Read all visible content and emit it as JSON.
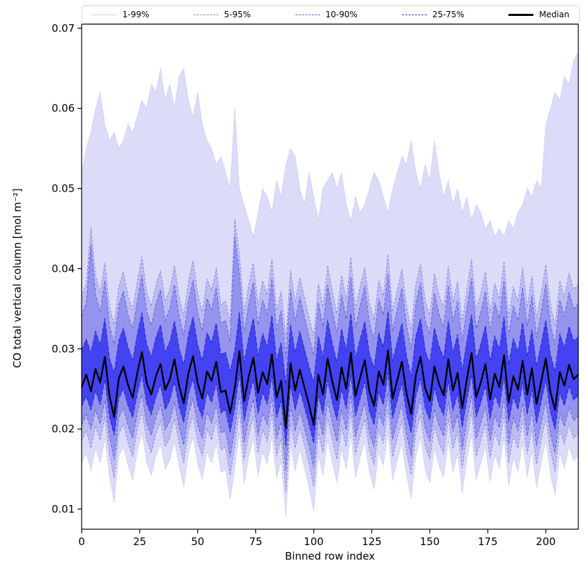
{
  "accent_color": "#2a2af0",
  "chart_data": {
    "type": "area",
    "title": "",
    "xlabel": "Binned row index",
    "ylabel": "CO total vertical column [mol m⁻²]",
    "xlim": [
      0,
      214
    ],
    "ylim": [
      0.0075,
      0.0705
    ],
    "xticks": [
      0,
      25,
      50,
      75,
      100,
      125,
      150,
      175,
      200
    ],
    "yticks": [
      0.01,
      0.02,
      0.03,
      0.04,
      0.05,
      0.06,
      0.07
    ],
    "x_step": 2,
    "value_scale": 0.0001,
    "grid": false,
    "legend_position": "top",
    "bands": [
      {
        "name": "1-99%",
        "fill": "#dcdcf8",
        "edge": "#a0a0e8",
        "dash": "1 2.5",
        "upper": [
          520,
          550,
          570,
          600,
          620,
          580,
          560,
          570,
          550,
          560,
          580,
          570,
          590,
          610,
          600,
          630,
          620,
          650,
          610,
          630,
          600,
          640,
          650,
          610,
          590,
          620,
          580,
          560,
          550,
          530,
          540,
          520,
          500,
          600,
          500,
          480,
          460,
          440,
          470,
          500,
          490,
          470,
          510,
          490,
          530,
          550,
          540,
          500,
          480,
          520,
          490,
          460,
          500,
          510,
          520,
          500,
          520,
          480,
          460,
          490,
          470,
          480,
          500,
          520,
          510,
          490,
          470,
          500,
          520,
          540,
          530,
          560,
          520,
          500,
          530,
          510,
          560,
          520,
          490,
          510,
          480,
          500,
          470,
          490,
          460,
          480,
          470,
          450,
          460,
          440,
          450,
          440,
          460,
          450,
          470,
          480,
          500,
          490,
          510,
          500,
          580,
          600,
          620,
          610,
          640,
          630,
          660,
          670
        ],
        "lower": [
          158,
          170,
          148,
          176,
          158,
          188,
          140,
          108,
          166,
          178,
          155,
          136,
          172,
          195,
          159,
          142,
          166,
          181,
          150,
          161,
          185,
          154,
          128,
          169,
          190,
          156,
          137,
          172,
          158,
          183,
          146,
          149,
          112,
          150,
          196,
          132,
          165,
          188,
          141,
          171,
          156,
          191,
          138,
          160,
          92,
          180,
          148,
          174,
          152,
          126,
          98,
          167,
          142,
          186,
          158,
          133,
          175,
          150,
          193,
          139,
          164,
          184,
          146,
          125,
          171,
          154,
          196,
          136,
          161,
          182,
          142,
          113,
          166,
          189,
          149,
          133,
          176,
          154,
          140,
          185,
          147,
          169,
          121,
          162,
          193,
          137,
          157,
          179,
          134,
          168,
          151,
          190,
          129,
          164,
          147,
          183,
          140,
          173,
          127,
          158,
          186,
          143,
          117,
          170,
          152,
          178,
          160,
          167
        ]
      },
      {
        "name": "5-95%",
        "fill": "#bcbcf2",
        "edge": "#8585e5",
        "dash": "3 2.5",
        "upper": [
          365,
          382,
          452,
          392,
          370,
          408,
          352,
          330,
          378,
          396,
          366,
          349,
          384,
          415,
          371,
          353,
          380,
          398,
          359,
          374,
          404,
          365,
          341,
          383,
          410,
          369,
          346,
          387,
          373,
          401,
          355,
          360,
          332,
          462,
          417,
          344,
          380,
          407,
          354,
          385,
          367,
          412,
          348,
          372,
          313,
          398,
          358,
          389,
          364,
          339,
          316,
          382,
          352,
          404,
          372,
          344,
          392,
          361,
          414,
          350,
          378,
          402,
          357,
          336,
          386,
          366,
          418,
          346,
          374,
          400,
          353,
          324,
          381,
          406,
          360,
          342,
          394,
          367,
          351,
          403,
          358,
          384,
          333,
          375,
          412,
          349,
          370,
          396,
          345,
          382,
          362,
          409,
          340,
          378,
          359,
          401,
          352,
          391,
          338,
          370,
          405,
          355,
          329,
          385,
          364,
          395,
          374,
          380
        ],
        "lower": [
          185,
          198,
          176,
          204,
          186,
          215,
          168,
          138,
          194,
          206,
          183,
          165,
          200,
          222,
          187,
          170,
          194,
          209,
          178,
          189,
          213,
          182,
          158,
          197,
          217,
          184,
          166,
          200,
          186,
          211,
          174,
          177,
          142,
          178,
          223,
          161,
          193,
          216,
          170,
          199,
          184,
          219,
          166,
          188,
          122,
          208,
          176,
          202,
          180,
          156,
          128,
          195,
          170,
          214,
          186,
          162,
          203,
          178,
          221,
          168,
          192,
          212,
          174,
          155,
          199,
          182,
          224,
          165,
          189,
          210,
          171,
          143,
          194,
          217,
          178,
          162,
          204,
          182,
          169,
          213,
          175,
          197,
          151,
          190,
          221,
          166,
          185,
          207,
          163,
          196,
          179,
          218,
          158,
          192,
          176,
          211,
          169,
          201,
          156,
          186,
          214,
          172,
          147,
          198,
          181,
          206,
          188,
          195
        ]
      },
      {
        "name": "10-90%",
        "fill": "#9494ee",
        "edge": "#6060e0",
        "dash": "4.5 2.5",
        "upper": [
          340,
          358,
          430,
          368,
          346,
          385,
          328,
          306,
          354,
          372,
          342,
          325,
          360,
          392,
          347,
          329,
          356,
          374,
          335,
          350,
          380,
          341,
          317,
          359,
          386,
          345,
          322,
          363,
          349,
          377,
          331,
          336,
          308,
          440,
          393,
          320,
          356,
          383,
          330,
          361,
          343,
          388,
          324,
          348,
          289,
          374,
          334,
          365,
          340,
          315,
          292,
          358,
          328,
          380,
          348,
          320,
          368,
          337,
          390,
          326,
          354,
          378,
          333,
          312,
          362,
          342,
          394,
          322,
          350,
          376,
          329,
          300,
          357,
          382,
          336,
          318,
          370,
          343,
          327,
          379,
          334,
          360,
          309,
          351,
          388,
          325,
          346,
          372,
          321,
          358,
          338,
          385,
          316,
          354,
          335,
          377,
          328,
          367,
          314,
          346,
          381,
          331,
          305,
          361,
          340,
          371,
          350,
          356
        ],
        "lower": [
          205,
          218,
          200,
          224,
          206,
          236,
          190,
          162,
          214,
          226,
          204,
          188,
          220,
          243,
          208,
          192,
          215,
          230,
          199,
          210,
          234,
          203,
          180,
          218,
          238,
          205,
          188,
          221,
          207,
          232,
          195,
          198,
          165,
          200,
          244,
          183,
          214,
          237,
          192,
          220,
          205,
          240,
          188,
          209,
          148,
          229,
          197,
          223,
          201,
          178,
          152,
          216,
          192,
          235,
          207,
          184,
          224,
          199,
          242,
          190,
          213,
          233,
          196,
          178,
          220,
          204,
          245,
          187,
          210,
          231,
          193,
          166,
          215,
          238,
          200,
          185,
          225,
          204,
          191,
          234,
          197,
          218,
          174,
          211,
          242,
          188,
          207,
          228,
          185,
          217,
          201,
          239,
          181,
          214,
          198,
          232,
          191,
          223,
          179,
          208,
          235,
          194,
          170,
          219,
          203,
          227,
          210,
          216
        ]
      },
      {
        "name": "25-75%",
        "fill": "#4343f2",
        "edge": "#2828cf",
        "dash": "6 2.5",
        "upper": [
          298,
          312,
          295,
          322,
          305,
          338,
          288,
          270,
          310,
          326,
          302,
          286,
          318,
          345,
          306,
          290,
          314,
          330,
          296,
          309,
          335,
          301,
          280,
          317,
          340,
          305,
          285,
          320,
          308,
          332,
          293,
          296,
          272,
          298,
          346,
          283,
          314,
          338,
          292,
          319,
          303,
          342,
          286,
          308,
          255,
          330,
          295,
          322,
          300,
          278,
          258,
          316,
          290,
          336,
          307,
          283,
          325,
          298,
          344,
          288,
          312,
          334,
          294,
          276,
          320,
          302,
          347,
          285,
          309,
          332,
          291,
          266,
          315,
          338,
          298,
          282,
          326,
          303,
          289,
          335,
          295,
          318,
          273,
          310,
          343,
          287,
          306,
          329,
          284,
          316,
          299,
          340,
          280,
          313,
          296,
          333,
          290,
          324,
          278,
          306,
          336,
          293,
          271,
          319,
          301,
          328,
          310,
          315
        ],
        "lower": [
          228,
          241,
          224,
          248,
          230,
          262,
          215,
          192,
          238,
          250,
          229,
          214,
          244,
          268,
          232,
          218,
          240,
          255,
          224,
          236,
          259,
          228,
          208,
          243,
          263,
          230,
          214,
          246,
          233,
          257,
          220,
          224,
          196,
          226,
          269,
          210,
          239,
          262,
          219,
          245,
          231,
          266,
          214,
          235,
          178,
          255,
          223,
          248,
          227,
          206,
          182,
          242,
          218,
          261,
          233,
          211,
          250,
          225,
          268,
          216,
          238,
          259,
          222,
          205,
          246,
          230,
          270,
          213,
          236,
          257,
          219,
          195,
          241,
          263,
          226,
          211,
          251,
          230,
          217,
          260,
          223,
          244,
          202,
          237,
          268,
          215,
          233,
          254,
          212,
          243,
          227,
          265,
          209,
          240,
          224,
          258,
          218,
          249,
          207,
          234,
          261,
          221,
          199,
          245,
          229,
          253,
          236,
          242
        ]
      }
    ],
    "median": {
      "name": "Median",
      "color": "#000000",
      "values": [
        252,
        268,
        247,
        275,
        258,
        290,
        241,
        215,
        263,
        278,
        255,
        239,
        270,
        296,
        258,
        243,
        266,
        281,
        249,
        262,
        287,
        254,
        232,
        269,
        291,
        257,
        238,
        272,
        260,
        284,
        246,
        248,
        220,
        251,
        297,
        235,
        266,
        289,
        245,
        271,
        256,
        293,
        239,
        260,
        201,
        282,
        248,
        274,
        252,
        230,
        205,
        268,
        243,
        288,
        259,
        236,
        277,
        250,
        295,
        241,
        264,
        286,
        247,
        229,
        272,
        255,
        298,
        238,
        261,
        284,
        244,
        219,
        267,
        290,
        251,
        235,
        278,
        256,
        242,
        287,
        248,
        270,
        226,
        263,
        295,
        240,
        258,
        281,
        237,
        269,
        252,
        292,
        233,
        266,
        249,
        285,
        243,
        276,
        231,
        259,
        288,
        246,
        224,
        271,
        254,
        280,
        262,
        268
      ]
    }
  }
}
